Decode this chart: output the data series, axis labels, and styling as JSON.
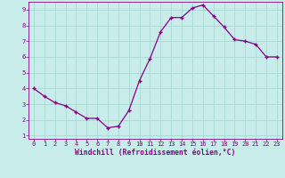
{
  "x": [
    0,
    1,
    2,
    3,
    4,
    5,
    6,
    7,
    8,
    9,
    10,
    11,
    12,
    13,
    14,
    15,
    16,
    17,
    18,
    19,
    20,
    21,
    22,
    23
  ],
  "y": [
    4.0,
    3.5,
    3.1,
    2.9,
    2.5,
    2.1,
    2.1,
    1.5,
    1.6,
    2.6,
    4.5,
    5.9,
    7.6,
    8.5,
    8.5,
    9.1,
    9.3,
    8.6,
    7.9,
    7.1,
    7.0,
    6.8,
    6.0,
    6.0
  ],
  "line_color": "#880088",
  "marker": "+",
  "markersize": 3.5,
  "linewidth": 0.9,
  "bg_color": "#c8ecea",
  "grid_color": "#a8d8d4",
  "xlabel": "Windchill (Refroidissement éolien,°C)",
  "xlabel_color": "#880088",
  "tick_color": "#880088",
  "spine_color": "#880088",
  "xlim_min": -0.5,
  "xlim_max": 23.5,
  "ylim_min": 0.8,
  "ylim_max": 9.5,
  "yticks": [
    1,
    2,
    3,
    4,
    5,
    6,
    7,
    8,
    9
  ],
  "xticks": [
    0,
    1,
    2,
    3,
    4,
    5,
    6,
    7,
    8,
    9,
    10,
    11,
    12,
    13,
    14,
    15,
    16,
    17,
    18,
    19,
    20,
    21,
    22,
    23
  ]
}
